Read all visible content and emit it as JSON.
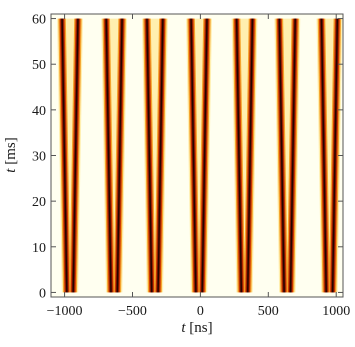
{
  "chart_data": {
    "type": "heatmap",
    "title": "",
    "xlabel": {
      "var": "t",
      "unit": "[ns]"
    },
    "ylabel": {
      "var": "t",
      "unit": "[ms]"
    },
    "xlim": [
      -1100,
      1050
    ],
    "ylim": [
      -1,
      61
    ],
    "xticks": [
      -1000,
      -500,
      0,
      500,
      1000
    ],
    "xtick_labels": [
      "−1000",
      "−500",
      "0",
      "500",
      "1000"
    ],
    "yticks": [
      0,
      10,
      20,
      30,
      40,
      50,
      60
    ],
    "ytick_labels": [
      "0",
      "10",
      "20",
      "30",
      "40",
      "50",
      "60"
    ],
    "data_y_range": [
      0,
      60
    ],
    "colormap": [
      "#fffff0",
      "#ffe27a",
      "#f39a1e",
      "#cc3300",
      "#7a1400",
      "#150000"
    ],
    "background_color": "#fffff0",
    "stripe_pairs": [
      {
        "center_ns": -960,
        "separation_start_ns": 10,
        "separation_end_ns": 80
      },
      {
        "center_ns": -635,
        "separation_start_ns": 10,
        "separation_end_ns": 80
      },
      {
        "center_ns": -335,
        "separation_start_ns": 10,
        "separation_end_ns": 80
      },
      {
        "center_ns": -10,
        "separation_start_ns": 10,
        "separation_end_ns": 80
      },
      {
        "center_ns": 325,
        "separation_start_ns": 10,
        "separation_end_ns": 80
      },
      {
        "center_ns": 640,
        "separation_start_ns": 10,
        "separation_end_ns": 80
      },
      {
        "center_ns": 950,
        "separation_start_ns": 10,
        "separation_end_ns": 80
      }
    ]
  }
}
